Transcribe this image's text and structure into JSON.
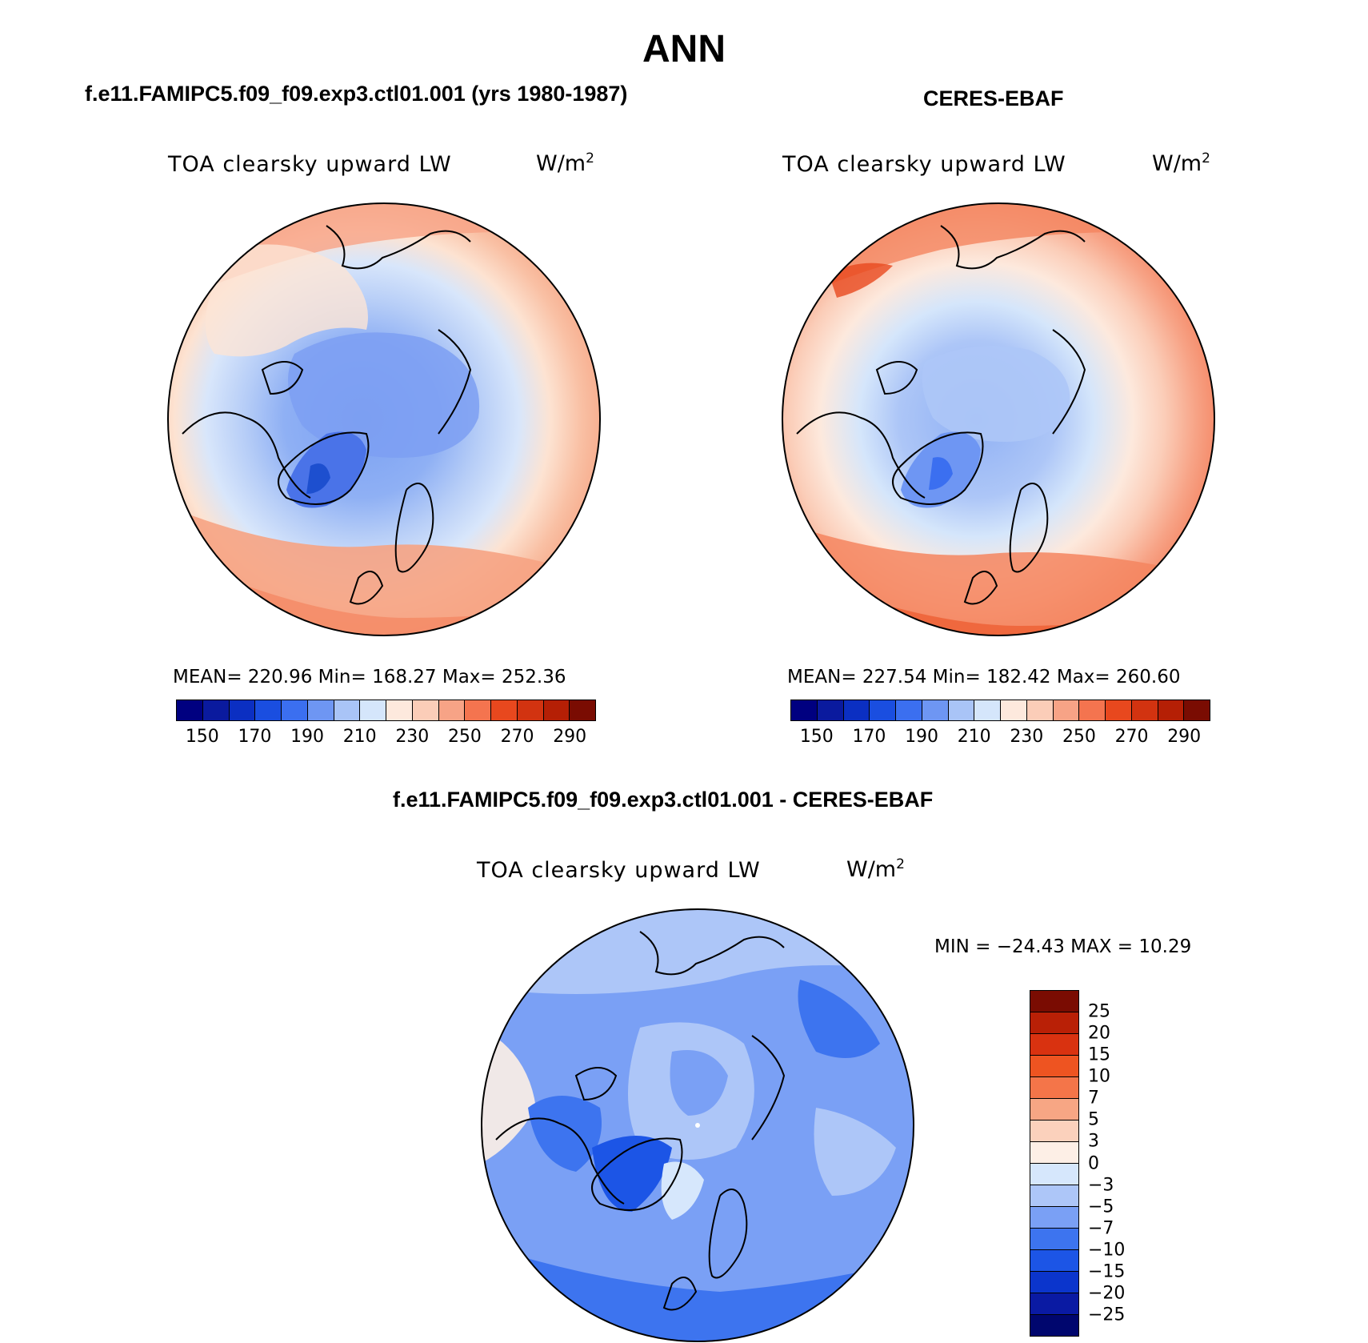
{
  "title": "ANN",
  "colors": {
    "model_scale": [
      "#000080",
      "#0a1a9e",
      "#0b2fc2",
      "#1a4ee0",
      "#3b6ff0",
      "#6e96f3",
      "#a9c4f7",
      "#d5e6fb",
      "#fde9dd",
      "#fbcdb8",
      "#f7a386",
      "#f4744f",
      "#e8481e",
      "#d23310",
      "#b51f05",
      "#7a0c02"
    ],
    "diff_scale": [
      "#00066e",
      "#0a1aa3",
      "#0b35cc",
      "#1c55e6",
      "#3d74ef",
      "#7aa0f5",
      "#adc6f8",
      "#d6e7fc",
      "#fdefe6",
      "#fbd1bc",
      "#f7a684",
      "#f47549",
      "#ee5421",
      "#d93210",
      "#b92006",
      "#7a0c02"
    ]
  },
  "chart_data": [
    {
      "type": "heatmap",
      "projection": "polar-stereographic",
      "title": "f.e11.FAMIPC5.f09_f09.exp3.ctl01.001 (yrs 1980-1987)",
      "variable": "TOA clearsky upward LW",
      "units": "W/m",
      "units_exp": "2",
      "stats": {
        "mean": "220.96",
        "min": "168.27",
        "max": "252.36"
      },
      "stats_text": "MEAN= 220.96   Min= 168.27   Max= 252.36",
      "colorbar": {
        "orientation": "horizontal",
        "levels": [
          150,
          160,
          170,
          180,
          190,
          200,
          210,
          220,
          230,
          240,
          250,
          260,
          270,
          280,
          290
        ],
        "tick_labels": [
          "150",
          "170",
          "190",
          "210",
          "230",
          "250",
          "270",
          "290"
        ]
      }
    },
    {
      "type": "heatmap",
      "projection": "polar-stereographic",
      "title": "CERES-EBAF",
      "variable": "TOA clearsky upward LW",
      "units": "W/m",
      "units_exp": "2",
      "stats": {
        "mean": "227.54",
        "min": "182.42",
        "max": "260.60"
      },
      "stats_text": "MEAN= 227.54   Min= 182.42   Max= 260.60",
      "colorbar": {
        "orientation": "horizontal",
        "levels": [
          150,
          160,
          170,
          180,
          190,
          200,
          210,
          220,
          230,
          240,
          250,
          260,
          270,
          280,
          290
        ],
        "tick_labels": [
          "150",
          "170",
          "190",
          "210",
          "230",
          "250",
          "270",
          "290"
        ]
      }
    },
    {
      "type": "heatmap",
      "projection": "polar-stereographic",
      "title": "f.e11.FAMIPC5.f09_f09.exp3.ctl01.001 - CERES-EBAF",
      "variable": "TOA clearsky upward LW",
      "units": "W/m",
      "units_exp": "2",
      "stats": {
        "min": "−24.43",
        "max": "10.29"
      },
      "stats_text": "MIN = −24.43 MAX =  10.29",
      "colorbar": {
        "orientation": "vertical",
        "levels": [
          25,
          20,
          15,
          10,
          7,
          5,
          3,
          0,
          -3,
          -5,
          -7,
          -10,
          -15,
          -20,
          -25
        ],
        "tick_labels": [
          "25",
          "20",
          "15",
          "10",
          "7",
          "5",
          "3",
          "0",
          "−3",
          "−5",
          "−7",
          "−10",
          "−15",
          "−20",
          "−25"
        ]
      }
    }
  ]
}
